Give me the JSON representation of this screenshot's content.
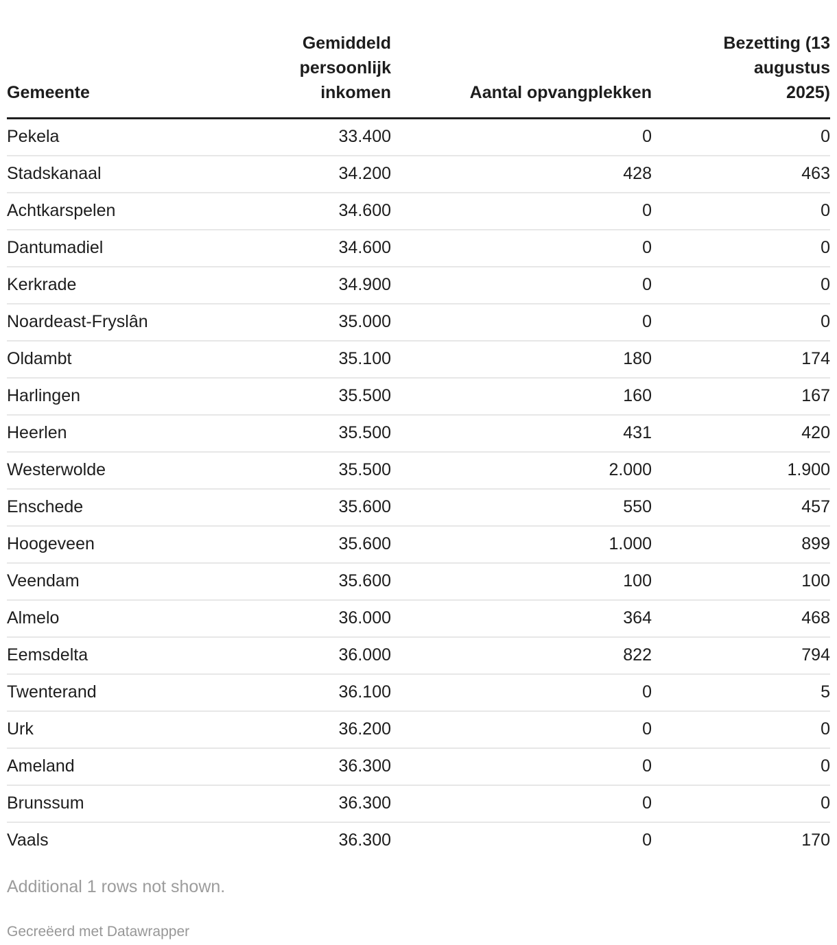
{
  "chart_data": {
    "type": "table",
    "title": "",
    "columns": [
      "Gemeente",
      "Gemiddeld persoonlijk inkomen",
      "Aantal opvangplekken",
      "Bezetting (13 augustus 2025)"
    ],
    "rows": [
      [
        "Pekela",
        33400,
        0,
        0
      ],
      [
        "Stadskanaal",
        34200,
        428,
        463
      ],
      [
        "Achtkarspelen",
        34600,
        0,
        0
      ],
      [
        "Dantumadiel",
        34600,
        0,
        0
      ],
      [
        "Kerkrade",
        34900,
        0,
        0
      ],
      [
        "Noardeast-Fryslân",
        35000,
        0,
        0
      ],
      [
        "Oldambt",
        35100,
        180,
        174
      ],
      [
        "Harlingen",
        35500,
        160,
        167
      ],
      [
        "Heerlen",
        35500,
        431,
        420
      ],
      [
        "Westerwolde",
        35500,
        2000,
        1900
      ],
      [
        "Enschede",
        35600,
        550,
        457
      ],
      [
        "Hoogeveen",
        35600,
        1000,
        899
      ],
      [
        "Veendam",
        35600,
        100,
        100
      ],
      [
        "Almelo",
        36000,
        364,
        468
      ],
      [
        "Eemsdelta",
        36000,
        822,
        794
      ],
      [
        "Twenterand",
        36100,
        0,
        5
      ],
      [
        "Urk",
        36200,
        0,
        0
      ],
      [
        "Ameland",
        36300,
        0,
        0
      ],
      [
        "Brunssum",
        36300,
        0,
        0
      ],
      [
        "Vaals",
        36300,
        0,
        170
      ]
    ]
  },
  "table": {
    "columns": [
      {
        "label": "Gemeente",
        "align": "left"
      },
      {
        "label": "Gemiddeld\npersoonlijk\ninkomen",
        "align": "right"
      },
      {
        "label": "Aantal opvangplekken",
        "align": "right"
      },
      {
        "label": "Bezetting (13\naugustus\n2025)",
        "align": "right"
      }
    ],
    "rows": [
      [
        "Pekela",
        "33.400",
        "0",
        "0"
      ],
      [
        "Stadskanaal",
        "34.200",
        "428",
        "463"
      ],
      [
        "Achtkarspelen",
        "34.600",
        "0",
        "0"
      ],
      [
        "Dantumadiel",
        "34.600",
        "0",
        "0"
      ],
      [
        "Kerkrade",
        "34.900",
        "0",
        "0"
      ],
      [
        "Noardeast-Fryslân",
        "35.000",
        "0",
        "0"
      ],
      [
        "Oldambt",
        "35.100",
        "180",
        "174"
      ],
      [
        "Harlingen",
        "35.500",
        "160",
        "167"
      ],
      [
        "Heerlen",
        "35.500",
        "431",
        "420"
      ],
      [
        "Westerwolde",
        "35.500",
        "2.000",
        "1.900"
      ],
      [
        "Enschede",
        "35.600",
        "550",
        "457"
      ],
      [
        "Hoogeveen",
        "35.600",
        "1.000",
        "899"
      ],
      [
        "Veendam",
        "35.600",
        "100",
        "100"
      ],
      [
        "Almelo",
        "36.000",
        "364",
        "468"
      ],
      [
        "Eemsdelta",
        "36.000",
        "822",
        "794"
      ],
      [
        "Twenterand",
        "36.100",
        "0",
        "5"
      ],
      [
        "Urk",
        "36.200",
        "0",
        "0"
      ],
      [
        "Ameland",
        "36.300",
        "0",
        "0"
      ],
      [
        "Brunssum",
        "36.300",
        "0",
        "0"
      ],
      [
        "Vaals",
        "36.300",
        "0",
        "170"
      ]
    ]
  },
  "footer": {
    "note": "Additional 1 rows not shown.",
    "credit": "Gecreëerd met Datawrapper"
  },
  "colors": {
    "text": "#1d1d1d",
    "header_rule": "#1f1f1f",
    "row_separator": "#e7e7e7",
    "note_gray": "#9c9c9c",
    "credit_gray": "#979797",
    "background": "#ffffff"
  }
}
